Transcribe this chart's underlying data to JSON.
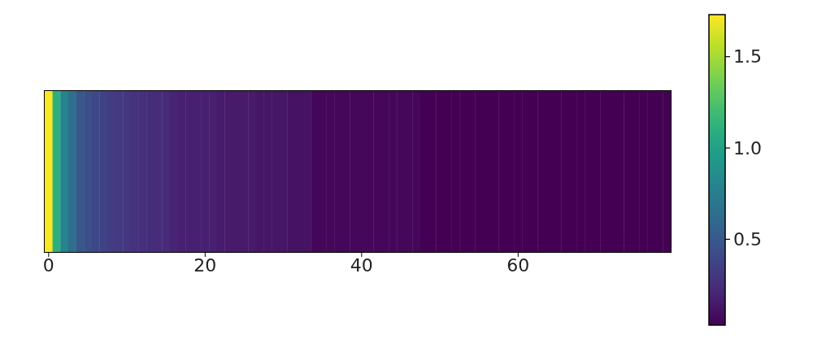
{
  "chart_data": {
    "type": "heatmap",
    "categories": [
      "0",
      null,
      null,
      null,
      null,
      null,
      null,
      null,
      null,
      null,
      null,
      null,
      null,
      null,
      null,
      null,
      null,
      null,
      null,
      null,
      "20",
      null,
      null,
      null,
      null,
      null,
      null,
      null,
      null,
      null,
      null,
      null,
      null,
      null,
      null,
      null,
      null,
      null,
      null,
      null,
      "40",
      null,
      null,
      null,
      null,
      null,
      null,
      null,
      null,
      null,
      null,
      null,
      null,
      null,
      null,
      null,
      null,
      null,
      null,
      null,
      "60",
      null,
      null,
      null,
      null,
      null,
      null,
      null,
      null,
      null,
      null,
      null,
      null,
      null,
      null,
      null,
      null,
      null,
      null,
      null
    ],
    "y_categories": [
      null
    ],
    "cells": [
      [
        1.72,
        1.1,
        0.8,
        0.65,
        0.5,
        0.45,
        0.4,
        0.37,
        0.34,
        0.32,
        0.3,
        0.28,
        0.26,
        0.25,
        0.24,
        0.23,
        0.2,
        0.18,
        0.18,
        0.18,
        0.18,
        0.18,
        0.15,
        0.15,
        0.15,
        0.15,
        0.15,
        0.13,
        0.13,
        0.13,
        0.13,
        0.11,
        0.11,
        0.11,
        0.06,
        0.06,
        0.06,
        0.06,
        0.06,
        0.06,
        0.06,
        0.06,
        0.06,
        0.06,
        0.06,
        0.06,
        0.06,
        0.06,
        0.03,
        0.03,
        0.03,
        0.03,
        0.03,
        0.03,
        0.03,
        0.03,
        0.03,
        0.03,
        0.03,
        0.03,
        0.03,
        0.03,
        0.03,
        0.03,
        0.03,
        0.03,
        0.03,
        0.03,
        0.03,
        0.03,
        0.03,
        0.03,
        0.03,
        0.03,
        0.03,
        0.03,
        0.03,
        0.03,
        0.03,
        0.03
      ]
    ],
    "clim": [
      0.03,
      1.73
    ],
    "cticks": [
      0.5,
      {
        "value": 1,
        "label": "1.0"
      },
      1.5
    ]
  }
}
